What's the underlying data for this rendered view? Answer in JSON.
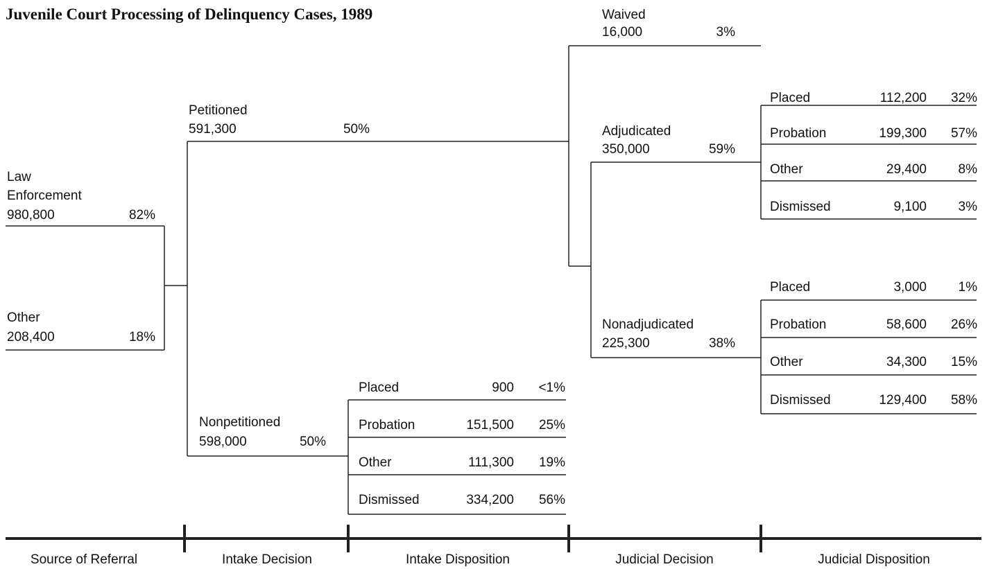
{
  "title": "Juvenile Court Processing of Delinquency Cases, 1989",
  "sources": [
    {
      "label": "Law",
      "label2": "Enforcement",
      "count": "980,800",
      "percent": "82%"
    },
    {
      "label": "Other",
      "count": "208,400",
      "percent": "18%"
    }
  ],
  "intake_decision": [
    {
      "label": "Petitioned",
      "count": "591,300",
      "percent": "50%"
    },
    {
      "label": "Nonpetitioned",
      "count": "598,000",
      "percent": "50%"
    }
  ],
  "intake_disposition": [
    {
      "label": "Placed",
      "count": "900",
      "percent": "<1%"
    },
    {
      "label": "Probation",
      "count": "151,500",
      "percent": "25%"
    },
    {
      "label": "Other",
      "count": "111,300",
      "percent": "19%"
    },
    {
      "label": "Dismissed",
      "count": "334,200",
      "percent": "56%"
    }
  ],
  "judicial_decision": [
    {
      "label": "Waived",
      "count": "16,000",
      "percent": "3%"
    },
    {
      "label": "Adjudicated",
      "count": "350,000",
      "percent": "59%"
    },
    {
      "label": "Nonadjudicated",
      "count": "225,300",
      "percent": "38%"
    }
  ],
  "adjudicated_disposition": [
    {
      "label": "Placed",
      "count": "112,200",
      "percent": "32%"
    },
    {
      "label": "Probation",
      "count": "199,300",
      "percent": "57%"
    },
    {
      "label": "Other",
      "count": "29,400",
      "percent": "8%"
    },
    {
      "label": "Dismissed",
      "count": "9,100",
      "percent": "3%"
    }
  ],
  "nonadjudicated_disposition": [
    {
      "label": "Placed",
      "count": "3,000",
      "percent": "1%"
    },
    {
      "label": "Probation",
      "count": "58,600",
      "percent": "26%"
    },
    {
      "label": "Other",
      "count": "34,300",
      "percent": "15%"
    },
    {
      "label": "Dismissed",
      "count": "129,400",
      "percent": "58%"
    }
  ],
  "stages": [
    "Source of Referral",
    "Intake Decision",
    "Intake Disposition",
    "Judicial Decision",
    "Judicial Disposition"
  ]
}
